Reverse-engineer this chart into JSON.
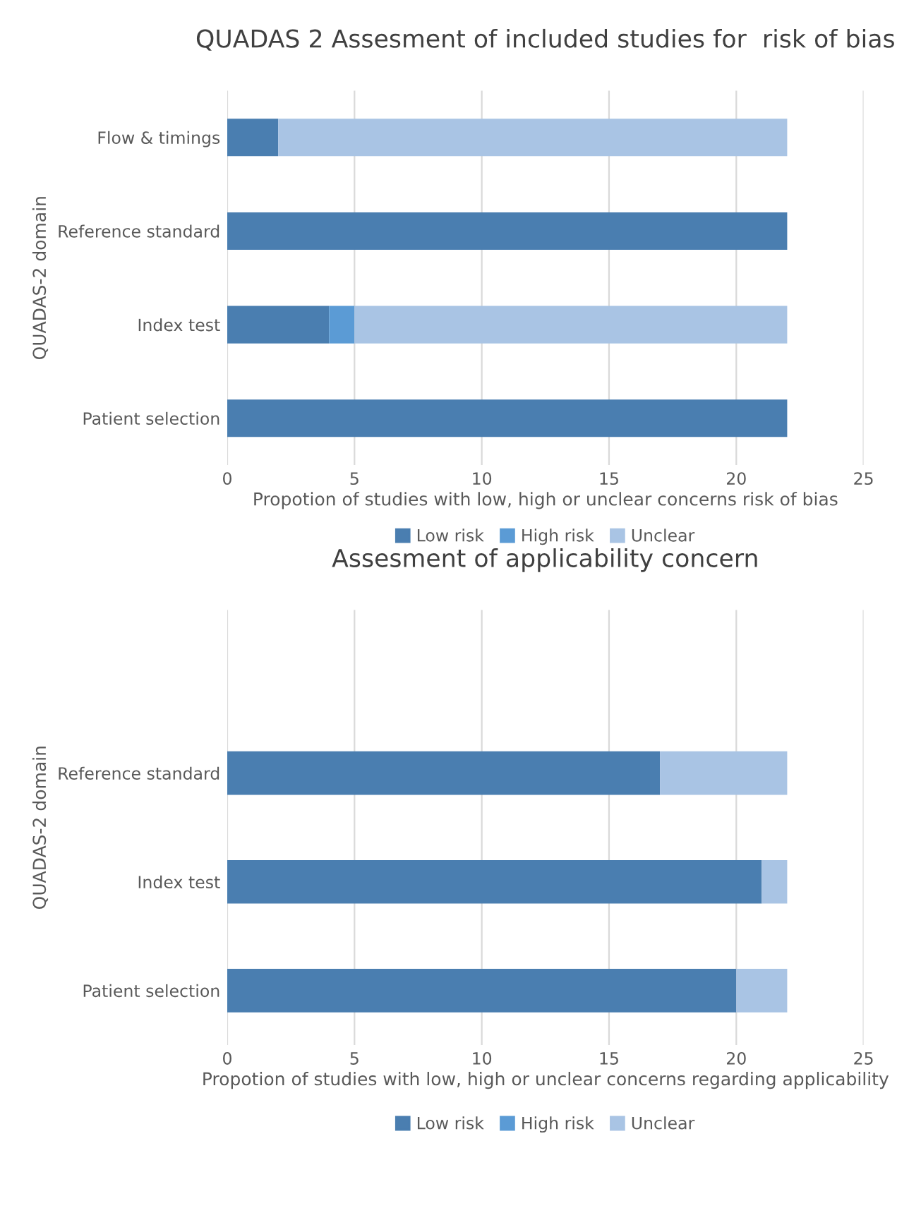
{
  "chart_data": [
    {
      "type": "bar",
      "orientation": "horizontal",
      "stacked": true,
      "title": "QUADAS 2 Assesment of included studies for  risk of bias",
      "xlabel": "Propotion of studies with low, high or unclear concerns risk of bias",
      "ylabel": "QUADAS-2 domain",
      "categories": [
        "Flow & timings",
        "Reference standard",
        "Index test",
        "Patient selection"
      ],
      "series": [
        {
          "name": "Low risk",
          "color": "#4a7eb0",
          "values": [
            2,
            22,
            4,
            22
          ]
        },
        {
          "name": "High risk",
          "color": "#5b9bd5",
          "values": [
            0,
            0,
            1,
            0
          ]
        },
        {
          "name": "Unclear",
          "color": "#a9c4e4",
          "values": [
            20,
            0,
            17,
            0
          ]
        }
      ],
      "xlim": [
        0,
        25
      ],
      "xticks": [
        0,
        5,
        10,
        15,
        20,
        25
      ],
      "grid": "x",
      "legend": "bottom"
    },
    {
      "type": "bar",
      "orientation": "horizontal",
      "stacked": true,
      "title": "Assesment of applicability concern",
      "xlabel": "Propotion of studies with low, high or unclear concerns regarding applicability",
      "ylabel": "QUADAS-2 domain",
      "categories": [
        null,
        "Reference standard",
        "Index test",
        "Patient selection"
      ],
      "series": [
        {
          "name": "Low risk",
          "color": "#4a7eb0",
          "values": [
            null,
            17,
            21,
            20
          ]
        },
        {
          "name": "High risk",
          "color": "#5b9bd5",
          "values": [
            null,
            0,
            0,
            0
          ]
        },
        {
          "name": "Unclear",
          "color": "#a9c4e4",
          "values": [
            null,
            5,
            1,
            2
          ]
        }
      ],
      "xlim": [
        0,
        25
      ],
      "xticks": [
        0,
        5,
        10,
        15,
        20,
        25
      ],
      "grid": "x",
      "legend": "bottom"
    }
  ]
}
